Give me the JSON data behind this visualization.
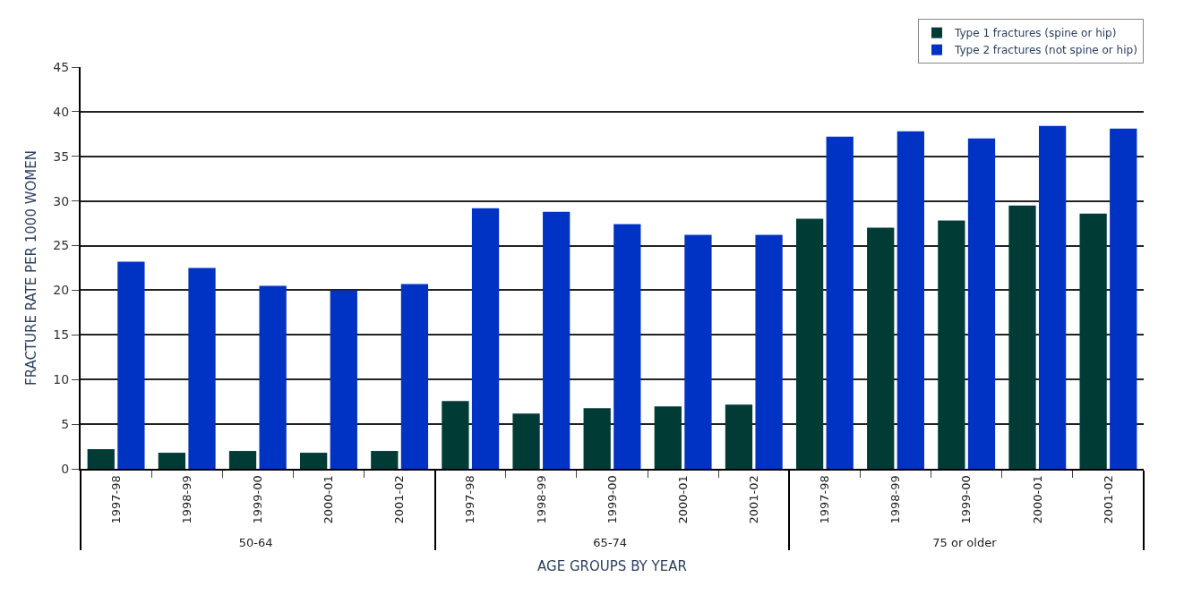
{
  "chart_data": {
    "type": "bar",
    "xlabel": "AGE GROUPS BY YEAR",
    "ylabel": "FRACTURE RATE PER 1000 WOMEN",
    "categories": [
      "1997-98",
      "1998-99",
      "1999-00",
      "2000-01",
      "2001-02",
      "1997-98",
      "1998-99",
      "1999-00",
      "2000-01",
      "2001-02",
      "1997-98",
      "1998-99",
      "1999-00",
      "2000-01",
      "2001-02"
    ],
    "annotations": [
      "50-64",
      "65-74",
      "75 or older"
    ],
    "series": [
      {
        "name": "Type 1 fractures (spine or hip)",
        "color": "#003b36",
        "values": [
          2.2,
          1.8,
          2.0,
          1.8,
          2.0,
          7.6,
          6.2,
          6.8,
          7.0,
          7.2,
          28.0,
          27.0,
          27.8,
          29.5,
          28.6
        ]
      },
      {
        "name": "Type 2 fractures (not spine or hip)",
        "color": "#0033c4",
        "values": [
          23.2,
          22.5,
          20.5,
          20.0,
          20.7,
          29.2,
          28.8,
          27.4,
          26.2,
          26.2,
          37.2,
          37.8,
          37.0,
          38.4,
          38.1
        ]
      }
    ],
    "ylim": [
      0,
      45
    ],
    "yticks": [
      0,
      5,
      10,
      15,
      20,
      25,
      30,
      35,
      40,
      45
    ],
    "grid": "y",
    "legend": "top right"
  }
}
